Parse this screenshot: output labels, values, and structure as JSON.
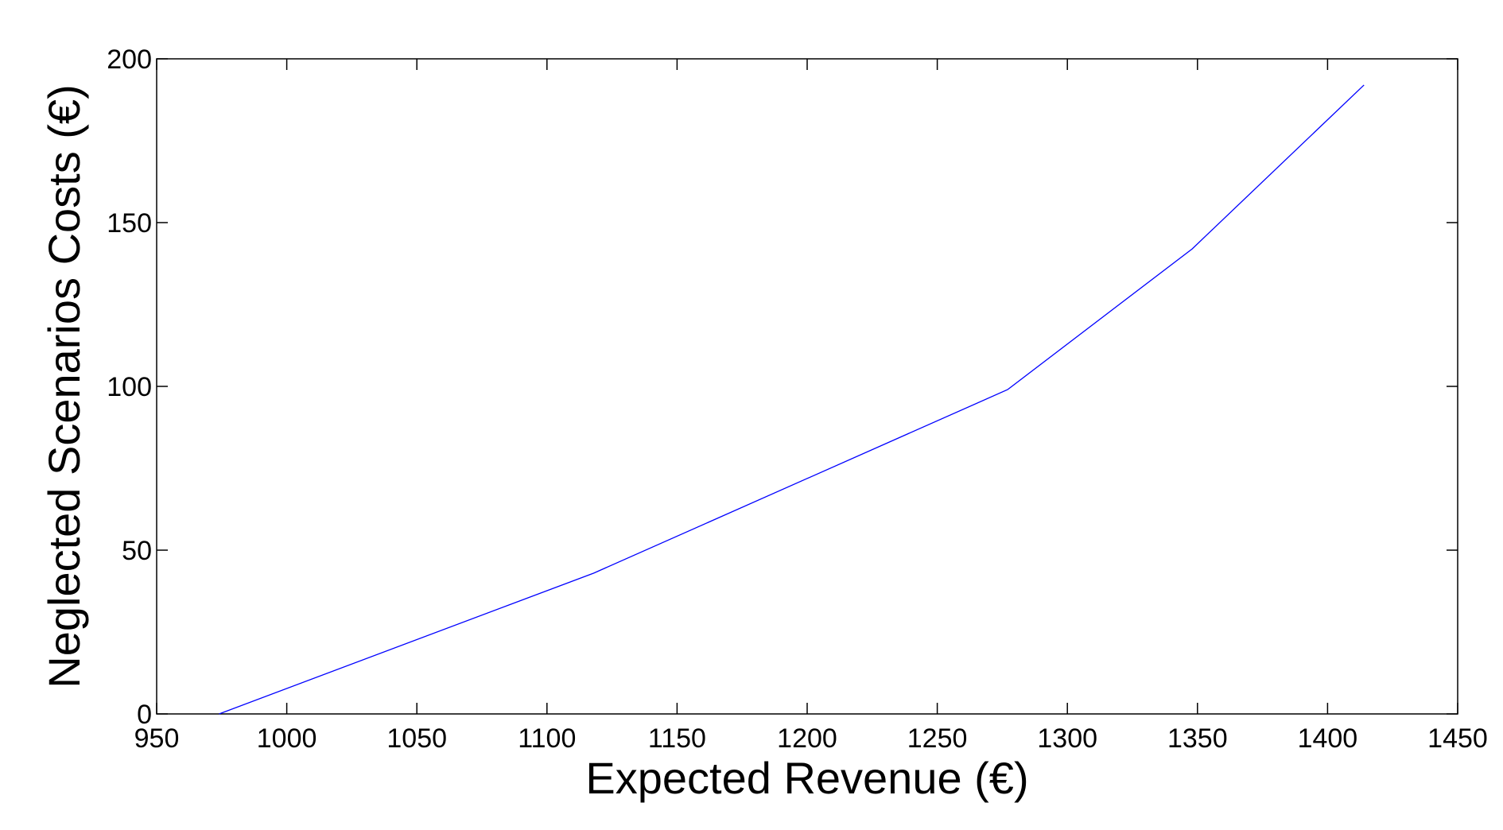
{
  "chart_data": {
    "type": "line",
    "x_label": "Expected Revenue (€)",
    "y_label": "Neglected Scenarios Costs (€)",
    "series": [
      {
        "color": "#0000ff",
        "x": [
          974,
          1118,
          1277,
          1348,
          1414
        ],
        "values": [
          0,
          43,
          99,
          142,
          192
        ]
      }
    ],
    "xlim": [
      950,
      1450
    ],
    "xticks": [
      950,
      1000,
      1050,
      1100,
      1150,
      1200,
      1250,
      1300,
      1350,
      1400,
      1450
    ],
    "ylim": [
      0,
      200
    ],
    "yticks": [
      0,
      50,
      100,
      150,
      200
    ],
    "grid": false
  }
}
